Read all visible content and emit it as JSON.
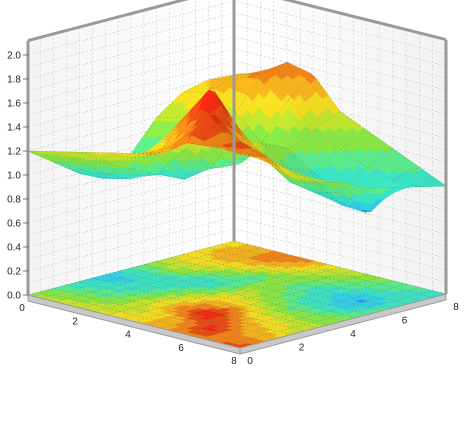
{
  "chart_data": {
    "type": "surface",
    "title": "",
    "xlabel": "",
    "ylabel": "",
    "zlabel": "",
    "x_ticks": [
      "0",
      "2",
      "4",
      "6",
      "8"
    ],
    "y_ticks": [
      "0",
      "2",
      "4",
      "6",
      "8"
    ],
    "z_ticks": [
      "0.0",
      "0.2",
      "0.4",
      "0.6",
      "0.8",
      "1.0",
      "1.2",
      "1.4",
      "1.6",
      "1.8",
      "2.0"
    ],
    "x_range": [
      0,
      8
    ],
    "y_range": [
      0,
      8
    ],
    "z_range": [
      0,
      2
    ],
    "grid": true,
    "legend": "none",
    "projection": "floor contour map",
    "colormap": [
      "#1a4fe0",
      "#2ec8f0",
      "#3fe8b0",
      "#8de23a",
      "#f0e020",
      "#f29a1c",
      "#e23a10",
      "#ff1010"
    ],
    "x_grid": [
      0,
      1,
      2,
      3,
      4,
      5,
      6,
      7,
      8
    ],
    "y_grid": [
      0,
      1,
      2,
      3,
      4,
      5,
      6,
      7,
      8
    ],
    "z": [
      [
        1.72,
        1.55,
        1.3,
        1.22,
        1.15,
        1.05,
        1.0,
        0.95,
        0.9
      ],
      [
        1.62,
        1.5,
        1.42,
        1.25,
        1.1,
        0.85,
        0.72,
        0.95,
        1.0
      ],
      [
        1.6,
        1.8,
        1.5,
        1.3,
        1.05,
        0.9,
        0.85,
        1.0,
        1.1
      ],
      [
        1.45,
        1.55,
        1.9,
        1.5,
        1.2,
        1.05,
        0.95,
        1.1,
        1.2
      ],
      [
        1.4,
        1.35,
        1.6,
        1.45,
        1.3,
        1.2,
        1.1,
        1.2,
        1.3
      ],
      [
        1.35,
        1.25,
        1.3,
        1.2,
        1.0,
        0.95,
        1.1,
        1.4,
        1.55
      ],
      [
        1.3,
        1.15,
        1.05,
        0.95,
        0.85,
        1.05,
        1.3,
        1.55,
        1.6
      ],
      [
        1.25,
        1.1,
        0.95,
        0.85,
        1.0,
        1.25,
        1.4,
        1.5,
        1.45
      ],
      [
        1.2,
        1.05,
        0.9,
        0.8,
        0.95,
        1.2,
        1.35,
        1.4,
        1.35
      ]
    ]
  }
}
